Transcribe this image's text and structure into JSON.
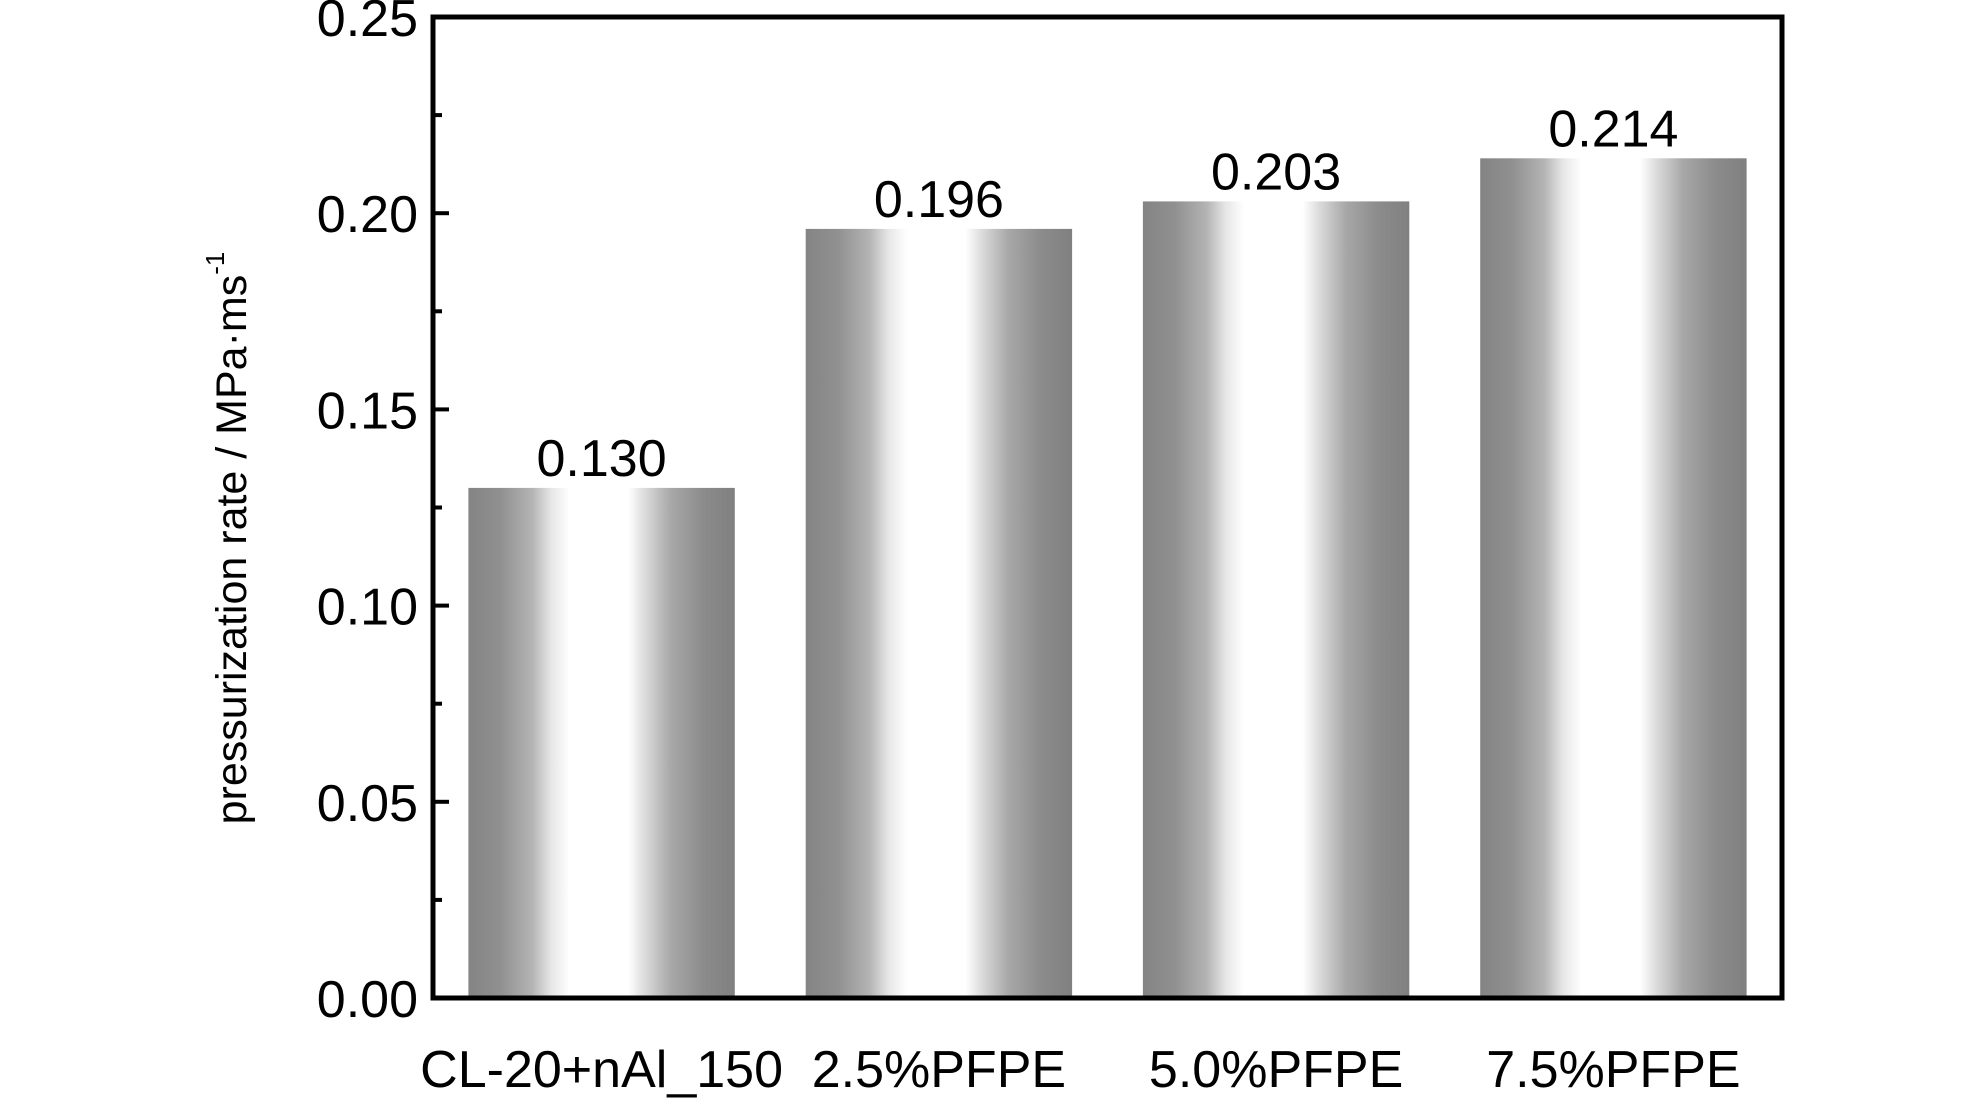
{
  "chart_data": {
    "type": "bar",
    "categories": [
      "CL-20+nAl_150",
      "2.5%PFPE",
      "5.0%PFPE",
      "7.5%PFPE"
    ],
    "values": [
      0.13,
      0.196,
      0.203,
      0.214
    ],
    "data_labels": [
      "0.130",
      "0.196",
      "0.203",
      "0.214"
    ],
    "ylabel": "pressurization rate / MPa·ms",
    "ylabel_superscript": "-1",
    "ylim": [
      0,
      0.25
    ],
    "yticks": [
      0.0,
      0.05,
      0.1,
      0.15,
      0.2,
      0.25
    ],
    "ytick_labels": [
      "0.00",
      "0.05",
      "0.10",
      "0.15",
      "0.20",
      "0.25"
    ],
    "y_minor_step": 0.025,
    "grid": false,
    "legend": "none"
  },
  "colors": {
    "axis": "#000000",
    "bar_dark": "#808080",
    "bar_mid": "#b4b4b4",
    "bar_light": "#ffffff"
  }
}
